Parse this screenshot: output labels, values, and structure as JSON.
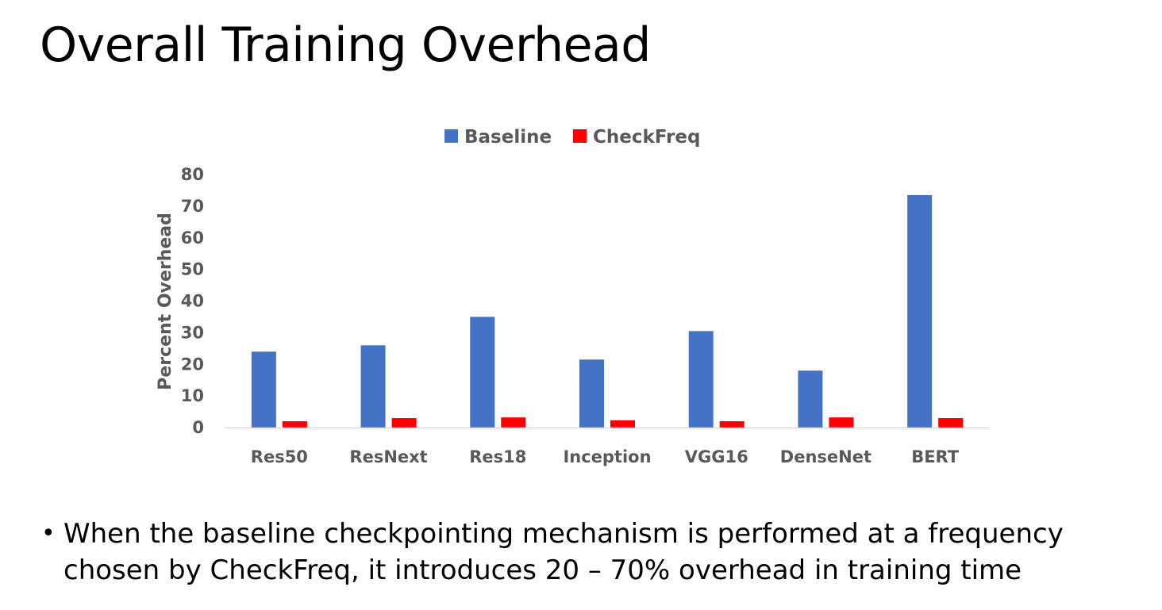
{
  "slide": {
    "title": "Overall Training Overhead",
    "bullet_symbol": "•",
    "bullet_text": "When the baseline checkpointing mechanism is performed at a frequency chosen by CheckFreq, it introduces 20 – 70% overhead in training time"
  },
  "chart_data": {
    "type": "bar",
    "categories": [
      "Res50",
      "ResNext",
      "Res18",
      "Inception",
      "VGG16",
      "DenseNet",
      "BERT"
    ],
    "series": [
      {
        "name": "Baseline",
        "color": "#4472C4",
        "values": [
          24,
          26,
          35,
          21.5,
          30.5,
          18,
          73.5
        ]
      },
      {
        "name": "CheckFreq",
        "color": "#FF0000",
        "values": [
          2,
          3,
          3.2,
          2.3,
          2,
          3.2,
          3
        ]
      }
    ],
    "title": "",
    "xlabel": "",
    "ylabel": "Percent Overhead",
    "ylim": [
      0,
      80
    ],
    "yticks": [
      0,
      10,
      20,
      30,
      40,
      50,
      60,
      70,
      80
    ],
    "grid": false,
    "legend_position": "top-center"
  }
}
